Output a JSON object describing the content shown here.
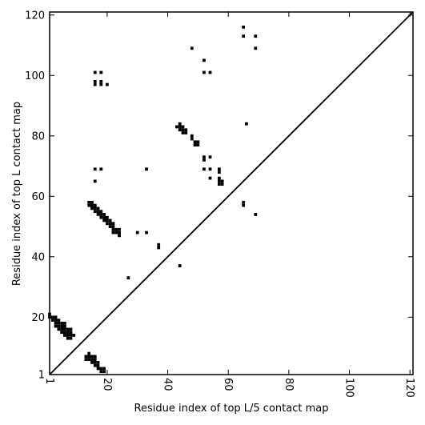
{
  "chart_data": {
    "type": "scatter",
    "title": "",
    "xlabel": "Residue index of top L/5 contact map",
    "ylabel": "Residue index of top L contact map",
    "xlim": [
      1,
      121
    ],
    "ylim": [
      1,
      121
    ],
    "xticks": [
      1,
      20,
      40,
      60,
      80,
      100,
      120
    ],
    "yticks": [
      1,
      20,
      40,
      60,
      80,
      100,
      120
    ],
    "x_tick_labels": [
      "1",
      "20",
      "40",
      "60",
      "80",
      "100",
      "120"
    ],
    "y_tick_labels": [
      "1",
      "20",
      "40",
      "60",
      "80",
      "100",
      "120"
    ],
    "x_tick_rotation": "vertical",
    "grid": false,
    "diagonal_line": true,
    "marker": "square",
    "point_color": "#000000",
    "points": [
      [
        1,
        20
      ],
      [
        1,
        21
      ],
      [
        2,
        19
      ],
      [
        2,
        20
      ],
      [
        3,
        17
      ],
      [
        3,
        18
      ],
      [
        3,
        19
      ],
      [
        3,
        20
      ],
      [
        4,
        16
      ],
      [
        4,
        17
      ],
      [
        4,
        18
      ],
      [
        4,
        19
      ],
      [
        5,
        15
      ],
      [
        5,
        16
      ],
      [
        5,
        17
      ],
      [
        5,
        18
      ],
      [
        6,
        14
      ],
      [
        6,
        15
      ],
      [
        6,
        16
      ],
      [
        6,
        17
      ],
      [
        6,
        18
      ],
      [
        7,
        13
      ],
      [
        7,
        14
      ],
      [
        7,
        15
      ],
      [
        7,
        16
      ],
      [
        8,
        13
      ],
      [
        8,
        14
      ],
      [
        8,
        15
      ],
      [
        8,
        16
      ],
      [
        9,
        14
      ],
      [
        13,
        6
      ],
      [
        13,
        7
      ],
      [
        14,
        6
      ],
      [
        14,
        7
      ],
      [
        14,
        8
      ],
      [
        15,
        5
      ],
      [
        15,
        6
      ],
      [
        15,
        7
      ],
      [
        16,
        4
      ],
      [
        16,
        5
      ],
      [
        16,
        6
      ],
      [
        16,
        7
      ],
      [
        17,
        3
      ],
      [
        17,
        4
      ],
      [
        17,
        5
      ],
      [
        18,
        2
      ],
      [
        18,
        3
      ],
      [
        19,
        2
      ],
      [
        19,
        3
      ],
      [
        14,
        57
      ],
      [
        14,
        58
      ],
      [
        15,
        56
      ],
      [
        15,
        57
      ],
      [
        15,
        58
      ],
      [
        16,
        55
      ],
      [
        16,
        56
      ],
      [
        16,
        57
      ],
      [
        17,
        54
      ],
      [
        17,
        55
      ],
      [
        17,
        56
      ],
      [
        18,
        53
      ],
      [
        18,
        54
      ],
      [
        18,
        55
      ],
      [
        19,
        52
      ],
      [
        19,
        53
      ],
      [
        19,
        54
      ],
      [
        20,
        51
      ],
      [
        20,
        52
      ],
      [
        20,
        53
      ],
      [
        21,
        50
      ],
      [
        21,
        51
      ],
      [
        21,
        52
      ],
      [
        22,
        50
      ],
      [
        22,
        51
      ],
      [
        22,
        48
      ],
      [
        22,
        49
      ],
      [
        23,
        48
      ],
      [
        23,
        49
      ],
      [
        24,
        47
      ],
      [
        24,
        48
      ],
      [
        24,
        49
      ],
      [
        30,
        48
      ],
      [
        33,
        48
      ],
      [
        27,
        33
      ],
      [
        37,
        43
      ],
      [
        37,
        44
      ],
      [
        16,
        65
      ],
      [
        16,
        69
      ],
      [
        18,
        69
      ],
      [
        33,
        69
      ],
      [
        16,
        97
      ],
      [
        16,
        98
      ],
      [
        16,
        101
      ],
      [
        18,
        97
      ],
      [
        18,
        98
      ],
      [
        18,
        101
      ],
      [
        20,
        97
      ],
      [
        44,
        37
      ],
      [
        43,
        83
      ],
      [
        44,
        82
      ],
      [
        44,
        83
      ],
      [
        44,
        84
      ],
      [
        45,
        81
      ],
      [
        45,
        82
      ],
      [
        45,
        83
      ],
      [
        46,
        81
      ],
      [
        46,
        82
      ],
      [
        48,
        79
      ],
      [
        48,
        80
      ],
      [
        49,
        77
      ],
      [
        49,
        78
      ],
      [
        50,
        77
      ],
      [
        50,
        78
      ],
      [
        52,
        72
      ],
      [
        52,
        73
      ],
      [
        52,
        69
      ],
      [
        54,
        69
      ],
      [
        54,
        73
      ],
      [
        54,
        66
      ],
      [
        57,
        64
      ],
      [
        57,
        65
      ],
      [
        57,
        66
      ],
      [
        57,
        68
      ],
      [
        57,
        69
      ],
      [
        58,
        64
      ],
      [
        58,
        65
      ],
      [
        48,
        109
      ],
      [
        52,
        105
      ],
      [
        52,
        101
      ],
      [
        54,
        101
      ],
      [
        65,
        57
      ],
      [
        65,
        58
      ],
      [
        65,
        113
      ],
      [
        65,
        116
      ],
      [
        66,
        84
      ],
      [
        69,
        54
      ],
      [
        69,
        109
      ],
      [
        69,
        113
      ]
    ]
  }
}
